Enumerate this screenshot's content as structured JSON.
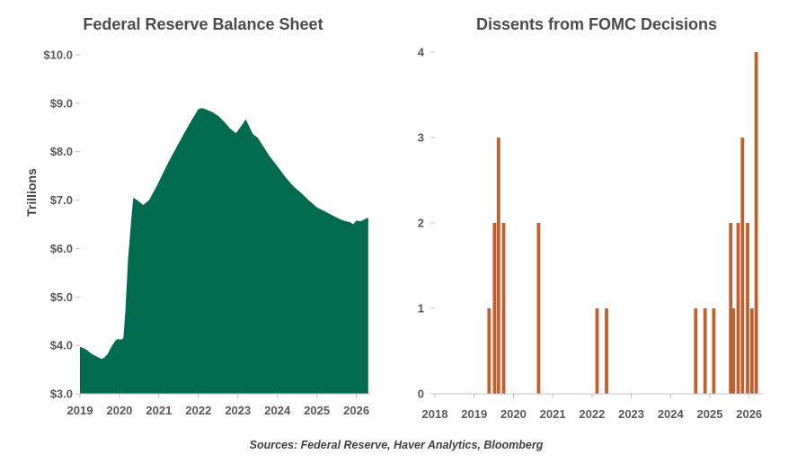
{
  "source_note": "Sources: Federal Reserve, Haver Analytics, Bloomberg",
  "colors": {
    "area": "#006b4f",
    "bars": "#c0602e",
    "axis": "#bfbfbf",
    "grid": "#d9d9d9"
  },
  "chart_data": [
    {
      "type": "area",
      "title": "Federal Reserve Balance Sheet",
      "xlabel": "",
      "ylabel": "Trillions",
      "xlim": [
        2019,
        2026.35
      ],
      "ylim": [
        3.0,
        10.0
      ],
      "y_ticks": [
        3.0,
        4.0,
        5.0,
        6.0,
        7.0,
        8.0,
        9.0,
        10.0
      ],
      "y_tick_labels": [
        "$3.0",
        "$4.0",
        "$5.0",
        "$6.0",
        "$7.0",
        "$8.0",
        "$9.0",
        "$10.0"
      ],
      "x_ticks": [
        2019,
        2020,
        2021,
        2022,
        2023,
        2024,
        2025,
        2026
      ],
      "x_tick_labels": [
        "2019",
        "2020",
        "2021",
        "2022",
        "2023",
        "2024",
        "2025",
        "2026"
      ],
      "grid": false,
      "series": [
        {
          "x": [
            2019.0,
            2019.15,
            2019.3,
            2019.45,
            2019.55,
            2019.62,
            2019.7,
            2019.8,
            2019.9,
            2019.95,
            2020.05,
            2020.1,
            2020.15,
            2020.22,
            2020.3,
            2020.35,
            2020.45,
            2020.6,
            2020.75,
            2020.85,
            2020.95,
            2021.1,
            2021.25,
            2021.45,
            2021.65,
            2021.85,
            2022.0,
            2022.1,
            2022.2,
            2022.35,
            2022.5,
            2022.65,
            2022.8,
            2022.95,
            2023.1,
            2023.2,
            2023.25,
            2023.38,
            2023.5,
            2023.65,
            2023.8,
            2024.0,
            2024.2,
            2024.4,
            2024.6,
            2024.8,
            2024.9,
            2025.0,
            2025.2,
            2025.4,
            2025.6,
            2025.75,
            2025.85,
            2025.92,
            2026.0,
            2026.1,
            2026.2,
            2026.3
          ],
          "y": [
            3.97,
            3.92,
            3.82,
            3.76,
            3.72,
            3.75,
            3.82,
            3.98,
            4.1,
            4.13,
            4.12,
            4.15,
            4.7,
            5.8,
            6.6,
            7.05,
            7.0,
            6.9,
            7.0,
            7.15,
            7.3,
            7.55,
            7.8,
            8.1,
            8.4,
            8.68,
            8.88,
            8.9,
            8.87,
            8.82,
            8.74,
            8.62,
            8.48,
            8.38,
            8.55,
            8.67,
            8.58,
            8.36,
            8.29,
            8.1,
            7.91,
            7.7,
            7.48,
            7.29,
            7.15,
            6.99,
            6.92,
            6.85,
            6.77,
            6.68,
            6.6,
            6.56,
            6.54,
            6.5,
            6.58,
            6.56,
            6.6,
            6.64
          ]
        }
      ]
    },
    {
      "type": "bar",
      "title": "Dissents from FOMC Decisions",
      "xlabel": "",
      "ylabel": "",
      "xlim": [
        2018,
        2026.35
      ],
      "ylim": [
        0,
        4
      ],
      "y_ticks": [
        0,
        1,
        2,
        3,
        4
      ],
      "y_tick_labels": [
        "0",
        "1",
        "2",
        "3",
        "4"
      ],
      "x_ticks": [
        2018,
        2019,
        2020,
        2021,
        2022,
        2023,
        2024,
        2025,
        2026
      ],
      "x_tick_labels": [
        "2018",
        "2019",
        "2020",
        "2021",
        "2022",
        "2023",
        "2024",
        "2025",
        "2026"
      ],
      "grid": false,
      "series": [
        {
          "x": [
            2019.38,
            2019.52,
            2019.62,
            2019.75,
            2020.64,
            2022.13,
            2022.37,
            2024.64,
            2024.88,
            2025.1,
            2025.53,
            2025.6,
            2025.72,
            2025.83,
            2025.96,
            2026.07,
            2026.18,
            2026.3
          ],
          "values": [
            1,
            2,
            3,
            2,
            2,
            1,
            1,
            1,
            1,
            1,
            2,
            1,
            2,
            3,
            2,
            1,
            4,
            0
          ]
        }
      ]
    }
  ]
}
